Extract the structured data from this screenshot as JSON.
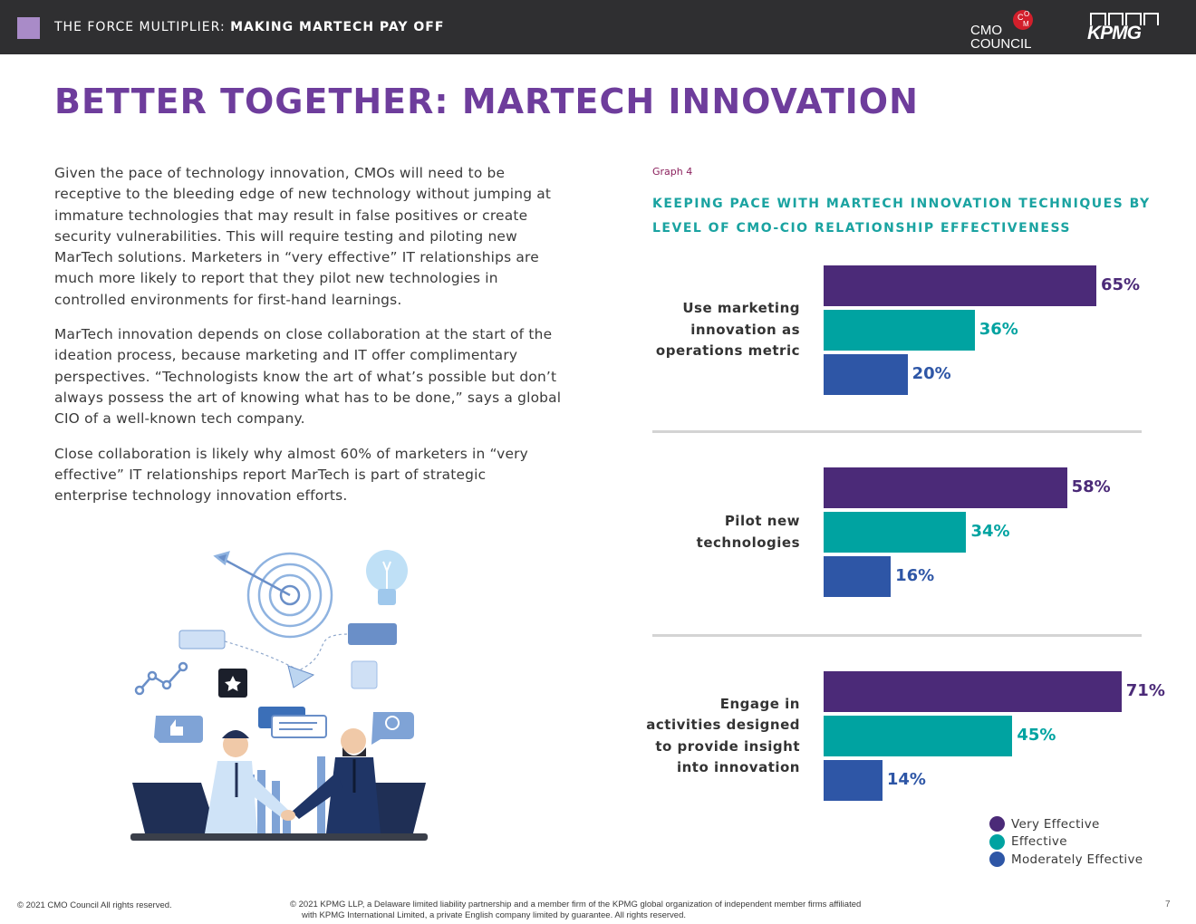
{
  "header": {
    "title_prefix": "THE FORCE MULTIPLIER: ",
    "title_bold": "MAKING MARTECH PAY OFF",
    "logo_cmo_line1": "CMO",
    "logo_cmo_line2": "COUNCIL",
    "logo_kpmg": "KPMG"
  },
  "page_title": "BETTER TOGETHER: MARTECH INNOVATION",
  "body": {
    "p1": "Given the pace of technology innovation, CMOs will need to be receptive to the bleeding edge of new technology without jumping at immature technologies that may result in false positives or create security vulnerabilities. This will require testing and piloting new MarTech solutions. Marketers in “very effective” IT relationships are much more likely to report that they pilot new technologies in controlled environments for first-hand learnings.",
    "p2": "MarTech innovation depends on close collaboration at the start of the ideation process, because marketing and IT offer complimentary perspectives. “Technologists know the art of what’s possible but don’t always possess the art of knowing what has to be done,” says a global CIO of a well-known tech company.",
    "p3": "Close collaboration is likely why almost 60% of marketers in “very effective” IT relationships report MarTech is part of strategic enterprise technology innovation efforts."
  },
  "graph": {
    "label": "Graph 4",
    "title": "KEEPING PACE WITH MARTECH INNOVATION TECHNIQUES BY LEVEL OF CMO-CIO RELATIONSHIP EFFECTIVENESS"
  },
  "chart_data": {
    "type": "bar",
    "orientation": "horizontal",
    "title": "KEEPING PACE WITH MARTECH INNOVATION TECHNIQUES BY LEVEL OF CMO-CIO RELATIONSHIP EFFECTIVENESS",
    "categories": [
      "Use marketing innovation as operations metric",
      "Pilot new technologies",
      "Engage in activities designed to provide insight into innovation"
    ],
    "category_lines": [
      [
        "Use marketing",
        "innovation as",
        "operations metric"
      ],
      [
        "Pilot new",
        "technologies"
      ],
      [
        "Engage in",
        "activities designed",
        "to provide insight",
        "into innovation"
      ]
    ],
    "series": [
      {
        "name": "Very Effective",
        "color": "#4b2a78",
        "labels": [
          "65%",
          "58%",
          "71%"
        ],
        "values": [
          65,
          58,
          71
        ]
      },
      {
        "name": "Effective",
        "color": "#00a3a1",
        "labels": [
          "36%",
          "34%",
          "45%"
        ],
        "values": [
          36,
          34,
          45
        ]
      },
      {
        "name": "Moderately Effective",
        "color": "#2e56a6",
        "labels": [
          "20%",
          "16%",
          "14%"
        ],
        "values": [
          20,
          16,
          14
        ]
      }
    ],
    "xlim": [
      0,
      100
    ],
    "legend": "bottom-right"
  },
  "legend": {
    "items": [
      "Very Effective",
      "Effective",
      "Moderately Effective"
    ]
  },
  "footer": {
    "left": "© 2021 CMO Council  All rights reserved.",
    "mid_line1": "© 2021 KPMG LLP, a Delaware limited liability partnership and a member firm of the KPMG global organization of independent member firms affiliated",
    "mid_line2": "with KPMG International Limited, a private English company limited by guarantee. All rights reserved.",
    "page_number": "7"
  }
}
